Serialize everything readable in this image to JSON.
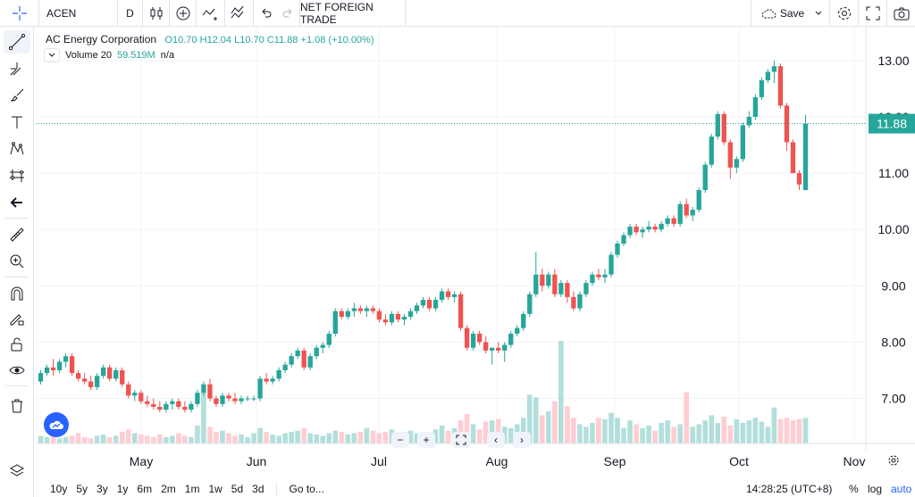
{
  "toolbar": {
    "symbol": "ACEN",
    "interval": "D",
    "indicator_name": "NET FOREIGN TRADE",
    "save_label": "Save"
  },
  "legend": {
    "name": "AC Energy Corporation",
    "open": "O10.70",
    "high": "H12.04",
    "low": "L10.70",
    "close": "C11.88",
    "change": "+1.08 (+10.00%)",
    "volume_label": "Volume 20",
    "volume_value": "59.519M",
    "volume_na": "n/a"
  },
  "price_axis": {
    "labels": [
      "13.00",
      "12.00",
      "11.00",
      "10.00",
      "9.00",
      "8.00",
      "7.00"
    ],
    "current_price": "11.88"
  },
  "time_axis": {
    "labels": [
      "May",
      "Jun",
      "Jul",
      "Aug",
      "Sep",
      "Oct",
      "Nov"
    ]
  },
  "bottom": {
    "ranges": [
      "10y",
      "5y",
      "3y",
      "1y",
      "6m",
      "2m",
      "1m",
      "1w",
      "5d",
      "3d"
    ],
    "goto": "Go to...",
    "clock": "14:28:25 (UTC+8)",
    "percent": "%",
    "log": "log",
    "auto": "auto"
  },
  "colors": {
    "up": "#26a69a",
    "down": "#ef5350",
    "vol_up": "#b2dfdb",
    "vol_down": "#ffcdd2",
    "price_line": "#26a69a"
  },
  "chart_data": {
    "type": "candlestick",
    "ylim": [
      6.2,
      13.6
    ],
    "yticks": [
      7,
      8,
      9,
      10,
      11,
      12,
      13
    ],
    "grid": true,
    "candles": [
      [
        7.3,
        7.5,
        7.25,
        7.45
      ],
      [
        7.45,
        7.6,
        7.4,
        7.55
      ],
      [
        7.55,
        7.7,
        7.4,
        7.5
      ],
      [
        7.5,
        7.7,
        7.45,
        7.65
      ],
      [
        7.65,
        7.8,
        7.55,
        7.75
      ],
      [
        7.75,
        7.8,
        7.4,
        7.45
      ],
      [
        7.45,
        7.5,
        7.3,
        7.35
      ],
      [
        7.35,
        7.45,
        7.25,
        7.3
      ],
      [
        7.3,
        7.4,
        7.15,
        7.2
      ],
      [
        7.2,
        7.45,
        7.15,
        7.4
      ],
      [
        7.4,
        7.6,
        7.35,
        7.55
      ],
      [
        7.55,
        7.6,
        7.3,
        7.35
      ],
      [
        7.35,
        7.55,
        7.3,
        7.5
      ],
      [
        7.5,
        7.55,
        7.2,
        7.25
      ],
      [
        7.25,
        7.3,
        7.0,
        7.05
      ],
      [
        7.05,
        7.15,
        6.95,
        7.1
      ],
      [
        7.1,
        7.15,
        6.9,
        6.95
      ],
      [
        6.95,
        7.05,
        6.85,
        6.9
      ],
      [
        6.9,
        7.0,
        6.8,
        6.85
      ],
      [
        6.85,
        6.95,
        6.75,
        6.8
      ],
      [
        6.8,
        6.95,
        6.75,
        6.9
      ],
      [
        6.9,
        7.0,
        6.8,
        6.95
      ],
      [
        6.95,
        7.0,
        6.8,
        6.85
      ],
      [
        6.85,
        6.95,
        6.75,
        6.8
      ],
      [
        6.8,
        6.95,
        6.75,
        6.9
      ],
      [
        6.9,
        7.15,
        6.85,
        7.1
      ],
      [
        7.1,
        7.3,
        7.05,
        7.25
      ],
      [
        7.25,
        7.35,
        6.95,
        7.0
      ],
      [
        7.0,
        7.05,
        6.85,
        6.9
      ],
      [
        6.9,
        7.1,
        6.85,
        7.05
      ],
      [
        7.05,
        7.1,
        6.95,
        7.0
      ],
      [
        7.0,
        7.1,
        6.9,
        6.95
      ],
      [
        6.95,
        7.05,
        6.9,
        7.0
      ],
      [
        7.0,
        7.05,
        6.95,
        7.0
      ],
      [
        7.0,
        7.05,
        6.95,
        7.0
      ],
      [
        7.0,
        7.4,
        6.95,
        7.35
      ],
      [
        7.35,
        7.45,
        7.25,
        7.3
      ],
      [
        7.3,
        7.4,
        7.25,
        7.35
      ],
      [
        7.35,
        7.55,
        7.3,
        7.5
      ],
      [
        7.5,
        7.65,
        7.45,
        7.6
      ],
      [
        7.6,
        7.8,
        7.55,
        7.75
      ],
      [
        7.75,
        7.9,
        7.7,
        7.85
      ],
      [
        7.85,
        7.9,
        7.5,
        7.55
      ],
      [
        7.55,
        7.8,
        7.5,
        7.75
      ],
      [
        7.75,
        7.95,
        7.7,
        7.9
      ],
      [
        7.9,
        8.0,
        7.8,
        7.95
      ],
      [
        7.95,
        8.2,
        7.9,
        8.15
      ],
      [
        8.15,
        8.6,
        8.1,
        8.55
      ],
      [
        8.55,
        8.6,
        8.4,
        8.45
      ],
      [
        8.45,
        8.6,
        8.4,
        8.55
      ],
      [
        8.55,
        8.7,
        8.45,
        8.6
      ],
      [
        8.6,
        8.65,
        8.5,
        8.55
      ],
      [
        8.55,
        8.65,
        8.45,
        8.6
      ],
      [
        8.6,
        8.65,
        8.5,
        8.55
      ],
      [
        8.55,
        8.6,
        8.35,
        8.4
      ],
      [
        8.4,
        8.5,
        8.3,
        8.35
      ],
      [
        8.35,
        8.55,
        8.3,
        8.5
      ],
      [
        8.5,
        8.55,
        8.35,
        8.4
      ],
      [
        8.4,
        8.5,
        8.3,
        8.45
      ],
      [
        8.45,
        8.6,
        8.4,
        8.55
      ],
      [
        8.55,
        8.7,
        8.5,
        8.65
      ],
      [
        8.65,
        8.8,
        8.6,
        8.75
      ],
      [
        8.75,
        8.8,
        8.55,
        8.6
      ],
      [
        8.6,
        8.8,
        8.55,
        8.75
      ],
      [
        8.75,
        8.95,
        8.7,
        8.9
      ],
      [
        8.9,
        8.95,
        8.75,
        8.8
      ],
      [
        8.8,
        8.9,
        8.7,
        8.85
      ],
      [
        8.85,
        8.9,
        8.2,
        8.25
      ],
      [
        8.25,
        8.3,
        7.85,
        7.9
      ],
      [
        7.9,
        8.2,
        7.85,
        8.15
      ],
      [
        8.15,
        8.2,
        7.95,
        8.0
      ],
      [
        8.0,
        8.1,
        7.8,
        7.85
      ],
      [
        7.85,
        7.9,
        7.6,
        7.9
      ],
      [
        7.9,
        8.0,
        7.8,
        7.85
      ],
      [
        7.85,
        8.0,
        7.65,
        7.95
      ],
      [
        7.95,
        8.2,
        7.9,
        8.15
      ],
      [
        8.15,
        8.3,
        8.1,
        8.25
      ],
      [
        8.25,
        8.55,
        8.2,
        8.5
      ],
      [
        8.5,
        8.9,
        8.45,
        8.85
      ],
      [
        8.85,
        9.6,
        8.8,
        9.2
      ],
      [
        9.2,
        9.3,
        8.9,
        9.0
      ],
      [
        9.0,
        9.25,
        8.95,
        9.2
      ],
      [
        9.2,
        9.3,
        8.8,
        8.85
      ],
      [
        8.85,
        9.1,
        8.8,
        9.05
      ],
      [
        9.05,
        9.1,
        8.7,
        8.8
      ],
      [
        8.8,
        8.9,
        8.55,
        8.6
      ],
      [
        8.6,
        8.9,
        8.55,
        8.85
      ],
      [
        8.85,
        9.1,
        8.8,
        9.05
      ],
      [
        9.05,
        9.25,
        9.0,
        9.2
      ],
      [
        9.2,
        9.3,
        9.1,
        9.15
      ],
      [
        9.15,
        9.3,
        9.05,
        9.2
      ],
      [
        9.2,
        9.6,
        9.15,
        9.55
      ],
      [
        9.55,
        9.8,
        9.5,
        9.75
      ],
      [
        9.75,
        9.95,
        9.7,
        9.9
      ],
      [
        9.9,
        10.1,
        9.85,
        10.05
      ],
      [
        10.05,
        10.1,
        9.9,
        9.95
      ],
      [
        9.95,
        10.05,
        9.85,
        10.0
      ],
      [
        10.0,
        10.15,
        9.95,
        10.05
      ],
      [
        10.05,
        10.1,
        9.95,
        10.0
      ],
      [
        10.0,
        10.15,
        9.95,
        10.1
      ],
      [
        10.1,
        10.25,
        10.05,
        10.2
      ],
      [
        10.2,
        10.25,
        10.05,
        10.1
      ],
      [
        10.1,
        10.5,
        10.05,
        10.45
      ],
      [
        10.45,
        10.55,
        10.2,
        10.25
      ],
      [
        10.25,
        10.4,
        10.15,
        10.35
      ],
      [
        10.35,
        10.75,
        10.3,
        10.7
      ],
      [
        10.7,
        11.2,
        10.65,
        11.15
      ],
      [
        11.15,
        11.7,
        11.1,
        11.65
      ],
      [
        11.65,
        12.1,
        11.6,
        12.05
      ],
      [
        12.05,
        12.1,
        11.5,
        11.55
      ],
      [
        11.55,
        11.6,
        10.9,
        11.1
      ],
      [
        11.1,
        11.3,
        11.0,
        11.25
      ],
      [
        11.25,
        11.9,
        11.2,
        11.85
      ],
      [
        11.85,
        12.1,
        11.8,
        12.0
      ],
      [
        12.0,
        12.4,
        11.95,
        12.35
      ],
      [
        12.35,
        12.7,
        12.3,
        12.65
      ],
      [
        12.65,
        12.85,
        12.6,
        12.8
      ],
      [
        12.8,
        13.0,
        12.6,
        12.9
      ],
      [
        12.9,
        12.95,
        12.15,
        12.2
      ],
      [
        12.2,
        12.25,
        11.4,
        11.55
      ],
      [
        11.55,
        11.6,
        11.0,
        11.0
      ],
      [
        11.0,
        11.05,
        10.7,
        10.8
      ],
      [
        10.7,
        12.04,
        10.7,
        11.88
      ]
    ],
    "volume": [
      0.6,
      0.5,
      0.7,
      0.4,
      0.5,
      0.6,
      0.8,
      0.5,
      0.4,
      0.6,
      0.7,
      0.5,
      0.6,
      0.9,
      1.1,
      0.8,
      0.7,
      0.6,
      0.5,
      0.7,
      0.5,
      0.6,
      0.8,
      0.6,
      0.5,
      1.4,
      4.0,
      1.3,
      0.9,
      1.0,
      0.8,
      0.6,
      0.7,
      0.5,
      0.8,
      1.2,
      0.9,
      0.7,
      0.6,
      0.8,
      0.9,
      1.0,
      1.2,
      0.8,
      0.7,
      0.6,
      0.8,
      1.0,
      0.9,
      0.7,
      0.8,
      0.9,
      1.2,
      1.0,
      0.8,
      0.9,
      1.1,
      0.8,
      0.9,
      1.0,
      0.8,
      0.7,
      0.9,
      1.1,
      1.4,
      1.0,
      1.2,
      1.8,
      2.3,
      1.5,
      1.1,
      1.7,
      1.8,
      1.9,
      1.3,
      1.2,
      1.5,
      2.0,
      3.8,
      3.6,
      2.2,
      2.5,
      3.3,
      8.0,
      2.9,
      2.0,
      1.5,
      1.3,
      1.6,
      2.0,
      1.9,
      2.4,
      2.0,
      1.2,
      1.8,
      1.5,
      1.2,
      1.4,
      1.0,
      1.6,
      1.8,
      1.3,
      1.5,
      4.0,
      1.3,
      1.5,
      1.8,
      2.2,
      1.6,
      2.1,
      1.4,
      1.9,
      1.6,
      1.8,
      2.0,
      1.7,
      1.3,
      2.8,
      1.9,
      2.0,
      1.8,
      1.9,
      2.0
    ],
    "volume_max": 8.0
  }
}
